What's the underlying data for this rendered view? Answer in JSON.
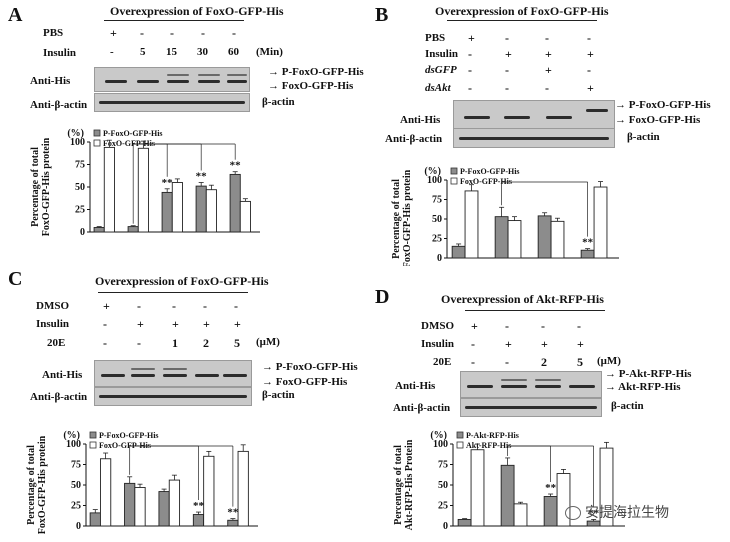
{
  "panelA": {
    "letter": "A",
    "title": "Overexpression of FoxO-GFP-His",
    "rows": [
      {
        "label": "PBS",
        "vals": [
          "+",
          "-",
          "-",
          "-",
          "-"
        ]
      },
      {
        "label": "Insulin",
        "vals": [
          "-",
          "5",
          "15",
          "30",
          "60"
        ]
      }
    ],
    "unit": "(Min)",
    "blot1_label": "Anti-His",
    "blot2_label": "Anti-β-actin",
    "right1": "P-FoxO-GFP-His",
    "right2": "FoxO-GFP-His",
    "right3": "β-actin"
  },
  "panelB": {
    "letter": "B",
    "title": "Overexpression of FoxO-GFP-His",
    "rows": [
      {
        "label": "PBS",
        "vals": [
          "+",
          "-",
          "-",
          "-"
        ]
      },
      {
        "label": "Insulin",
        "vals": [
          "-",
          "+",
          "+",
          "+"
        ]
      },
      {
        "label": "dsGFP",
        "vals": [
          "-",
          "-",
          "+",
          "-"
        ]
      },
      {
        "label": "dsAkt",
        "vals": [
          "-",
          "-",
          "-",
          "+"
        ]
      }
    ],
    "blot1_label": "Anti-His",
    "blot2_label": "Anti-β-actin",
    "right1": "P-FoxO-GFP-His",
    "right2": "FoxO-GFP-His",
    "right3": "β-actin"
  },
  "panelC": {
    "letter": "C",
    "title": "Overexpression of FoxO-GFP-His",
    "rows": [
      {
        "label": "DMSO",
        "vals": [
          "+",
          "-",
          "-",
          "-",
          "-"
        ]
      },
      {
        "label": "Insulin",
        "vals": [
          "-",
          "+",
          "+",
          "+",
          "+"
        ]
      },
      {
        "label": "20E",
        "vals": [
          "-",
          "-",
          "1",
          "2",
          "5"
        ]
      }
    ],
    "unit": "(μM)",
    "blot1_label": "Anti-His",
    "blot2_label": "Anti-β-actin",
    "right1": "P-FoxO-GFP-His",
    "right2": "FoxO-GFP-His",
    "right3": "β-actin"
  },
  "panelD": {
    "letter": "D",
    "title": "Overexpression of Akt-RFP-His",
    "rows": [
      {
        "label": "DMSO",
        "vals": [
          "+",
          "-",
          "-",
          "-"
        ]
      },
      {
        "label": "Insulin",
        "vals": [
          "-",
          "+",
          "+",
          "+"
        ]
      },
      {
        "label": "20E",
        "vals": [
          "-",
          "-",
          "2",
          "5"
        ]
      }
    ],
    "unit": "(μM)",
    "blot1_label": "Anti-His",
    "blot2_label": "Anti-β-actin",
    "right1": "P-Akt-RFP-His",
    "right2": "Akt-RFP-His",
    "right3": "β-actin"
  },
  "watermark": "安提海拉生物",
  "chart_data": [
    {
      "id": "A",
      "type": "bar",
      "ylabel": "Percentage of total FoxO-GFP-His protein",
      "yunit": "(%)",
      "ylim": [
        0,
        100
      ],
      "yticks": [
        0,
        25,
        50,
        75,
        100
      ],
      "groups": 5,
      "series": [
        {
          "name": "P-FoxO-GFP-His",
          "color": "#8c8c8c",
          "values": [
            5,
            6,
            44,
            51,
            64
          ],
          "errors": [
            1,
            1,
            4,
            4,
            3
          ]
        },
        {
          "name": "FoxO-GFP-His",
          "color": "#ffffff",
          "values": [
            94,
            93,
            55,
            47,
            34
          ],
          "errors": [
            8,
            8,
            4,
            5,
            3
          ]
        }
      ],
      "significance": [
        "",
        "",
        "**",
        "**",
        "**"
      ]
    },
    {
      "id": "B",
      "type": "bar",
      "ylabel": "Percentage of total FoxO-GFP-His protein",
      "yunit": "(%)",
      "ylim": [
        0,
        100
      ],
      "yticks": [
        0,
        25,
        50,
        75,
        100
      ],
      "groups": 4,
      "series": [
        {
          "name": "P-FoxO-GFP-His",
          "color": "#8c8c8c",
          "values": [
            15,
            53,
            54,
            10
          ],
          "errors": [
            3,
            12,
            4,
            2
          ]
        },
        {
          "name": "FoxO-GFP-His",
          "color": "#ffffff",
          "values": [
            86,
            48,
            47,
            91
          ],
          "errors": [
            8,
            5,
            4,
            7
          ]
        }
      ],
      "significance": [
        "",
        "",
        "",
        "**"
      ]
    },
    {
      "id": "C",
      "type": "bar",
      "ylabel": "Percentage of total FoxO-GFP-His protein",
      "yunit": "(%)",
      "ylim": [
        0,
        100
      ],
      "yticks": [
        0,
        25,
        50,
        75,
        100
      ],
      "groups": 5,
      "series": [
        {
          "name": "P-FoxO-GFP-His",
          "color": "#8c8c8c",
          "values": [
            16,
            52,
            42,
            14,
            7
          ],
          "errors": [
            4,
            8,
            3,
            3,
            2
          ]
        },
        {
          "name": "FoxO-GFP-His",
          "color": "#ffffff",
          "values": [
            82,
            47,
            56,
            85,
            91
          ],
          "errors": [
            7,
            4,
            6,
            6,
            8
          ]
        }
      ],
      "significance": [
        "",
        "",
        "",
        "**",
        "**"
      ]
    },
    {
      "id": "D",
      "type": "bar",
      "ylabel": "Percentage of total Akt-RFP-His Protein",
      "yunit": "(%)",
      "ylim": [
        0,
        100
      ],
      "yticks": [
        0,
        25,
        50,
        75,
        100
      ],
      "groups": 4,
      "series": [
        {
          "name": "P-Akt-RFP-His",
          "color": "#8c8c8c",
          "values": [
            8,
            74,
            36,
            6
          ],
          "errors": [
            1,
            9,
            3,
            2
          ]
        },
        {
          "name": "Akt-RFP-His",
          "color": "#ffffff",
          "values": [
            93,
            27,
            64,
            95
          ],
          "errors": [
            7,
            2,
            5,
            7
          ]
        }
      ],
      "significance": [
        "",
        "",
        "**",
        "**"
      ]
    }
  ]
}
